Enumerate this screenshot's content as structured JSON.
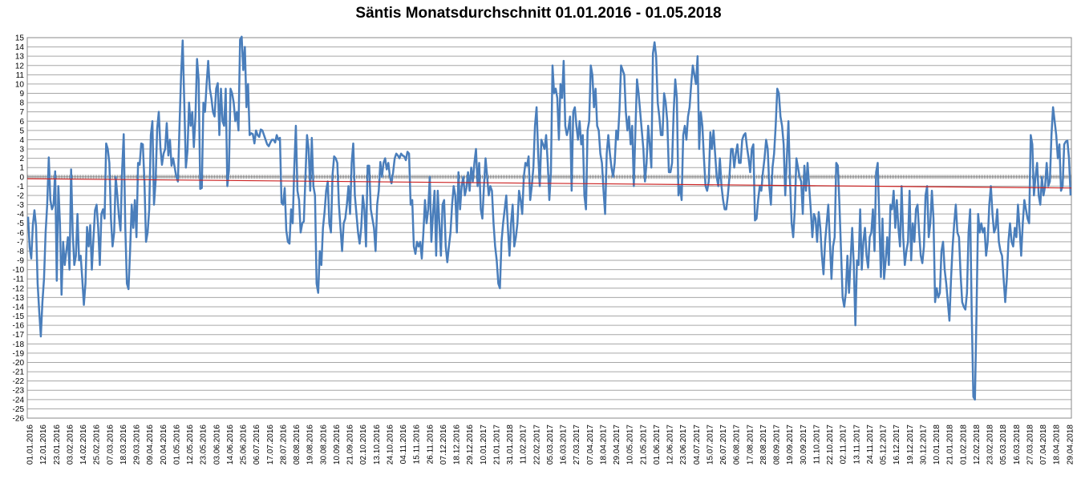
{
  "chart_data": {
    "type": "line",
    "title": "Säntis Monatsdurchschnitt 01.01.2016  - 01.05.2018",
    "xlabel": "",
    "ylabel": "",
    "ylim": [
      -26,
      15
    ],
    "yticks": [
      15,
      14,
      13,
      12,
      11,
      10,
      9,
      8,
      7,
      6,
      5,
      4,
      3,
      2,
      1,
      0,
      -1,
      -2,
      -3,
      -4,
      -5,
      -6,
      -7,
      -8,
      -9,
      -10,
      -11,
      -12,
      -13,
      -14,
      -15,
      -16,
      -17,
      -18,
      -19,
      -20,
      -21,
      -22,
      -23,
      -24,
      -25,
      -26
    ],
    "ytick_labels": [
      "15",
      "14",
      "13",
      "12",
      "11",
      "10",
      "9",
      "8",
      "7",
      "6",
      "5",
      "4",
      "3",
      "2",
      "1",
      "0",
      "-1",
      "-2",
      "-3",
      "-4",
      "-5",
      "-6",
      "-7",
      "-8",
      "-9",
      "-10",
      "-11",
      "-12",
      "-13",
      "-14",
      "-15",
      "-16",
      "-17",
      "-18",
      "-19",
      "-20",
      "-21",
      "-22",
      "-23",
      "-24",
      "-25",
      "-26"
    ],
    "xtick_labels": [
      "01.01.2016",
      "12.01.2016",
      "23.01.2016",
      "03.02.2016",
      "14.02.2016",
      "25.02.2016",
      "07.03.2016",
      "18.03.2016",
      "29.03.2016",
      "09.04.2016",
      "20.04.2016",
      "01.05.2016",
      "12.05.2016",
      "23.05.2016",
      "03.06.2016",
      "14.06.2016",
      "25.06.2016",
      "06.07.2016",
      "17.07.2016",
      "28.07.2016",
      "08.08.2016",
      "19.08.2016",
      "30.08.2016",
      "10.09.2016",
      "21.09.2016",
      "02.10.2016",
      "13.10.2016",
      "24.10.2016",
      "04.11.2016",
      "15.11.2016",
      "26.11.2016",
      "07.12.2016",
      "18.12.2016",
      "29.12.2016",
      "10.01.2017",
      "21.01.2017",
      "31.01.2018",
      "11.02.2017",
      "22.02.2017",
      "05.03.2017",
      "16.03.2017",
      "27.03.2017",
      "07.04.2017",
      "18.04.2017",
      "29.04.2017",
      "10.05.2017",
      "21.05.2017",
      "01.06.2017",
      "12.06.2017",
      "23.06.2017",
      "04.07.2017",
      "15.07.2017",
      "26.07.2017",
      "06.08.2017",
      "17.08.2017",
      "28.08.2017",
      "08.09.2017",
      "19.09.2017",
      "30.09.2017",
      "11.10.2017",
      "22.10.2017",
      "02.11.2017",
      "13.11.2017",
      "24.11.2017",
      "05.12.2017",
      "16.12.2017",
      "19.12.2017",
      "30.12.2017",
      "10.01.2018",
      "21.01.2018",
      "01.02.2018",
      "12.02.2018",
      "23.02.2018",
      "05.03.2018",
      "16.03.2018",
      "27.03.2018",
      "07.04.2018",
      "18.04.2018",
      "29.04.2018"
    ],
    "grid": true,
    "legend": "none",
    "series": [
      {
        "color": "#4a7ebb",
        "values": [
          -4.3,
          -7.6,
          -8.8,
          -5.2,
          -3.6,
          -5.3,
          -11.5,
          -14.5,
          -17.2,
          -13.5,
          -11,
          -6,
          -3,
          2.1,
          -2.5,
          -3.5,
          -3,
          0.6,
          -11.2,
          -1,
          -5,
          -12.7,
          -7,
          -9.5,
          -8,
          -6.5,
          -10,
          0.8,
          -6,
          -9.5,
          -8.5,
          -4,
          -9,
          -8.5,
          -11,
          -13.8,
          -11.5,
          -5.4,
          -7.5,
          -5.2,
          -10,
          -6.7,
          -3.6,
          -3,
          -5.5,
          -9.5,
          -4,
          -3.5,
          -4.5,
          3.6,
          3,
          1.5,
          -4.5,
          -7.5,
          -6,
          0,
          -2,
          -4.3,
          -5.8,
          0.7,
          4.6,
          -5.5,
          -11.5,
          -12.1,
          -8,
          -3,
          -5.5,
          -2.5,
          -6.5,
          1.5,
          1.3,
          3.6,
          3.5,
          -0.5,
          -7,
          -6,
          -3.5,
          4.5,
          6,
          -3,
          -0.5,
          5.2,
          7,
          3.2,
          1.3,
          2.5,
          3,
          5.8,
          2.3,
          4,
          1.2,
          2,
          1,
          0,
          -0.5,
          5.5,
          11,
          14.7,
          8,
          1,
          2.8,
          8,
          5.5,
          7,
          3.2,
          6.5,
          12.7,
          10.5,
          -1.3,
          -1.2,
          8,
          7,
          10,
          12.5,
          9.5,
          8.5,
          7,
          6.5,
          9.5,
          10.1,
          4.5,
          9.5,
          6,
          5.5,
          9.5,
          -1,
          0.7,
          9.5,
          9,
          8,
          6,
          7,
          5,
          14.8,
          15.1,
          11.5,
          14,
          7.5,
          10,
          4.5,
          4.7,
          4.6,
          3.6,
          5,
          4.5,
          4.3,
          5.1,
          5,
          4.5,
          4,
          3.5,
          3.3,
          3.7,
          4,
          4,
          3.7,
          4.5,
          4,
          4.2,
          -2.8,
          -3,
          -1.2,
          -5.8,
          -7,
          -7.2,
          -3.5,
          -5,
          1,
          5.5,
          -1.5,
          -2.5,
          -6,
          -5,
          -4.8,
          0,
          4.5,
          3,
          -1.5,
          4.2,
          -1,
          -2,
          -11.5,
          -12.5,
          -8,
          -9.5,
          -5.5,
          -3.8,
          -1.5,
          -0.5,
          -5,
          -6,
          0.2,
          2.2,
          2,
          1.5,
          -3,
          -5.5,
          -8,
          -5,
          -4.5,
          -3,
          -1,
          -4,
          1.5,
          3.6,
          -2,
          -4,
          -6,
          -7.2,
          -5.5,
          -2,
          -3.5,
          -7.5,
          1.2,
          1.2,
          -3.5,
          -4.5,
          -5.5,
          -8,
          -3,
          -1.5,
          1.6,
          0,
          1.5,
          2,
          0.8,
          1.5,
          0,
          -0.7,
          0.5,
          2,
          2.5,
          2.3,
          2,
          2.5,
          2.3,
          2.2,
          1.8,
          2.7,
          2.5,
          -3,
          -2.5,
          -7.5,
          -8.3,
          -7,
          -7.5,
          -7,
          -8.8,
          -6,
          -2.5,
          -5,
          -3.5,
          0,
          -7,
          -4,
          -1.5,
          -8.5,
          -1.5,
          -5,
          -8.5,
          -3,
          -2.5,
          -7.5,
          -9.2,
          -7.5,
          -6,
          -3,
          -1,
          -2,
          -6,
          0.5,
          -3.5,
          -1,
          0,
          -2,
          -1.2,
          0.5,
          -1.5,
          1,
          -0.5,
          1.5,
          3,
          -1,
          1.5,
          -3.5,
          -4.5,
          -1,
          2,
          0,
          -2,
          -1,
          -1.5,
          -5,
          -7.5,
          -9,
          -11.5,
          -12,
          -7,
          -5,
          -3.5,
          -2,
          -5.5,
          -8.5,
          -5,
          -3,
          -7.5,
          -6.5,
          -5,
          -1.5,
          -2.5,
          -4,
          0,
          1.5,
          1.2,
          2.2,
          -2.5,
          -1,
          1,
          5.5,
          7.5,
          2.5,
          -1,
          4,
          3.5,
          3,
          4.5,
          1.5,
          -2.5,
          0.5,
          12,
          9,
          9.5,
          8.5,
          4,
          10,
          8.5,
          12.5,
          5.5,
          4.5,
          5.2,
          6.5,
          -1.5,
          7,
          7.5,
          5.5,
          4,
          6,
          3.5,
          4.5,
          -2,
          -3.5,
          5,
          6,
          12,
          11,
          7.5,
          9.5,
          5.5,
          5,
          2.5,
          1.5,
          -1.5,
          -4,
          2.5,
          4.5,
          2.5,
          1,
          0,
          1.5,
          5,
          4,
          7.2,
          12,
          11.5,
          11,
          7,
          5,
          6.5,
          3.5,
          5.5,
          -1,
          5,
          10.5,
          9,
          7,
          5,
          3,
          -0.5,
          1.5,
          5.5,
          3.5,
          1,
          13.3,
          14.5,
          13,
          8,
          6.5,
          4.5,
          4.5,
          9,
          8,
          6,
          0.5,
          0.5,
          1.5,
          7,
          10.5,
          8.5,
          -2,
          -1,
          -2.5,
          4.5,
          5.5,
          4,
          6.5,
          7.5,
          10,
          12,
          11,
          10,
          13,
          3,
          7,
          5.5,
          2,
          -1,
          -1.5,
          -0.5,
          4.8,
          3,
          5,
          2.5,
          0,
          -1,
          2,
          -1,
          -2.5,
          -3.5,
          -3.5,
          -2,
          0,
          3,
          3,
          1,
          2.5,
          3.5,
          1.5,
          1.5,
          4,
          4.5,
          4.7,
          3.2,
          2,
          0.5,
          3,
          3.5,
          -4.7,
          -4.5,
          -2.5,
          -1,
          -1.5,
          0.5,
          2,
          4,
          3,
          -1,
          -3,
          1,
          2.5,
          5.5,
          9.5,
          9,
          6.5,
          5.5,
          3.5,
          -2,
          2,
          6,
          -0.5,
          -5,
          -6.5,
          -3.5,
          2,
          1,
          0,
          -0.5,
          -4,
          1.2,
          -1.5,
          1.5,
          -1,
          -3.5,
          -6.5,
          -4,
          -4.5,
          -7,
          -3.8,
          -5.5,
          -8.5,
          -10.5,
          -7,
          -5,
          -3,
          -7,
          -11,
          -7.5,
          -6.5,
          1.5,
          1.2,
          -3,
          -8,
          -13,
          -14,
          -12.5,
          -8.5,
          -12.5,
          -9,
          -5.5,
          -9.5,
          -16,
          -9,
          -9.5,
          -3.5,
          -10,
          -7,
          -5.5,
          -8.5,
          -9.8,
          -6.5,
          -6,
          -3.5,
          -8,
          0.5,
          1.5,
          -4.5,
          -10.8,
          -4.5,
          -11,
          -9,
          -6.5,
          -9.5,
          -3,
          -3.5,
          -1.5,
          -5.5,
          -2.5,
          -5.5,
          -7.5,
          -1,
          -6.5,
          -9.5,
          -8,
          -7,
          -1.5,
          -9,
          -5,
          -7,
          -3.5,
          -3,
          -6,
          -8.5,
          -9.3,
          -7.5,
          -2,
          -1,
          -6.5,
          -5,
          -1.5,
          -4.5,
          -13.5,
          -12,
          -13,
          -12.5,
          -8,
          -7,
          -10,
          -11.5,
          -13.5,
          -15.5,
          -11,
          -7.5,
          -5,
          -3,
          -6,
          -6.5,
          -10.5,
          -13.5,
          -14,
          -14.3,
          -12.5,
          -6,
          -3.5,
          -15,
          -23.7,
          -24,
          -14.5,
          -4,
          -6,
          -5,
          -6,
          -5.5,
          -8.5,
          -7,
          -3,
          -1,
          -4,
          -6,
          -5.5,
          -3.5,
          -7,
          -8,
          -8.5,
          -11,
          -13.5,
          -11,
          -7,
          -5,
          -7,
          -7.5,
          -5.5,
          -6.5,
          -3,
          -5.5,
          -8.5,
          -5,
          -2.5,
          -3.5,
          -4.5,
          -5,
          4.5,
          3.5,
          -2,
          0,
          1.5,
          -2,
          -3,
          0,
          -2,
          -1,
          1.5,
          -1,
          -0.5,
          4.5,
          7.5,
          6,
          4.5,
          2,
          3.5,
          -1.5,
          -1,
          3.5,
          3.8,
          3.9,
          2,
          -2
        ]
      },
      {
        "color": "#cc2222",
        "start": -0.2,
        "end": -1.2
      }
    ]
  }
}
